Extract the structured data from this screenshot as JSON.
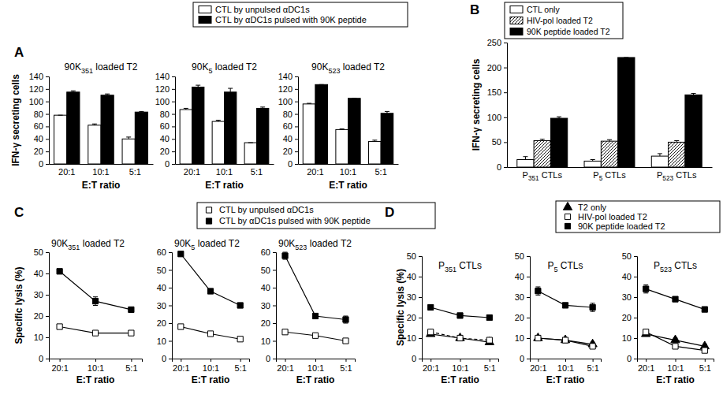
{
  "chart_data": [
    {
      "type": "bar",
      "annotations": [
        "A"
      ],
      "title": "90K351 loaded T2",
      "xlabel": "E:T ratio",
      "ylabel": "IFN-γ secreting cells",
      "categories": [
        "20:1",
        "10:1",
        "5:1"
      ],
      "series": [
        {
          "name": "CTL by unpulsed αDC1s",
          "color": "#ffffff",
          "values": [
            78,
            62,
            40
          ],
          "errors": [
            0,
            2,
            3
          ]
        },
        {
          "name": "CTL by αDC1s pulsed with 90K peptide",
          "color": "#000000",
          "values": [
            115,
            110,
            83
          ],
          "errors": [
            2,
            2,
            1
          ]
        }
      ],
      "ylim": [
        0,
        140
      ],
      "yticks": [
        0,
        20,
        40,
        60,
        80,
        100,
        120,
        140
      ],
      "legend": "top"
    },
    {
      "type": "bar",
      "title": "90K5 loaded T2",
      "xlabel": "E:T ratio",
      "categories": [
        "20:1",
        "10:1",
        "5:1"
      ],
      "series": [
        {
          "color": "#ffffff",
          "values": [
            87,
            68,
            34
          ],
          "errors": [
            2,
            2,
            0
          ]
        },
        {
          "color": "#000000",
          "values": [
            123,
            115,
            89
          ],
          "errors": [
            3,
            6,
            2
          ]
        }
      ],
      "ylim": [
        0,
        140
      ],
      "yticks": [
        0,
        20,
        40,
        60,
        80,
        100,
        120,
        140
      ]
    },
    {
      "type": "bar",
      "title": "90K523 loaded T2",
      "xlabel": "E:T ratio",
      "categories": [
        "20:1",
        "10:1",
        "5:1"
      ],
      "series": [
        {
          "color": "#ffffff",
          "values": [
            96,
            55,
            36
          ],
          "errors": [
            1,
            1,
            2
          ]
        },
        {
          "color": "#000000",
          "values": [
            127,
            105,
            81
          ],
          "errors": [
            0,
            0,
            3
          ]
        }
      ],
      "ylim": [
        0,
        140
      ],
      "yticks": [
        0,
        20,
        40,
        60,
        80,
        100,
        120,
        140
      ]
    },
    {
      "type": "bar",
      "annotations": [
        "B"
      ],
      "ylabel": "IFN-γ secreting cells",
      "categories": [
        "P351 CTLs",
        "P5 CTLs",
        "P523 CTLs"
      ],
      "series": [
        {
          "name": "CTL only",
          "color": "#ffffff",
          "values": [
            15,
            12,
            22
          ],
          "errors": [
            6,
            3,
            5
          ]
        },
        {
          "name": "HIV-pol loaded T2",
          "color": "#ffffff",
          "marker": "hatched",
          "values": [
            53,
            52,
            50
          ],
          "errors": [
            3,
            3,
            3
          ]
        },
        {
          "name": "90K peptide loaded T2",
          "color": "#000000",
          "values": [
            98,
            220,
            145
          ],
          "errors": [
            3,
            0,
            3
          ]
        }
      ],
      "ylim": [
        0,
        250
      ],
      "yticks": [
        0,
        50,
        100,
        150,
        200,
        250
      ],
      "legend": "top"
    },
    {
      "type": "line",
      "annotations": [
        "C"
      ],
      "title": "90K351 loaded T2",
      "xlabel": "E:T ratio",
      "ylabel": "Specific lysis (%)",
      "categories": [
        "20:1",
        "10:1",
        "5:1"
      ],
      "series": [
        {
          "name": "CTL by unpulsed αDC1s",
          "color": "#ffffff",
          "marker": "square",
          "line_style": "solid",
          "values": [
            15,
            12,
            12
          ],
          "errors": [
            1,
            1,
            1
          ]
        },
        {
          "name": "CTL by αDC1s pulsed with 90K peptide",
          "color": "#000000",
          "marker": "square",
          "line_style": "solid",
          "values": [
            41,
            27,
            23
          ],
          "errors": [
            1,
            2,
            1
          ]
        }
      ],
      "ylim": [
        0,
        50
      ],
      "yticks": [
        0,
        10,
        20,
        30,
        40,
        50
      ],
      "legend": "top"
    },
    {
      "type": "line",
      "title": "90K5 loaded T2",
      "xlabel": "E:T ratio",
      "categories": [
        "20:1",
        "10:1",
        "5:1"
      ],
      "series": [
        {
          "color": "#ffffff",
          "marker": "square",
          "line_style": "solid",
          "values": [
            18,
            14,
            11
          ],
          "errors": [
            1,
            1,
            1
          ]
        },
        {
          "color": "#000000",
          "marker": "square",
          "line_style": "solid",
          "values": [
            59,
            38,
            30
          ],
          "errors": [
            1,
            1,
            1
          ]
        }
      ],
      "ylim": [
        0,
        60
      ],
      "yticks": [
        0,
        10,
        20,
        30,
        40,
        50,
        60
      ]
    },
    {
      "type": "line",
      "title": "90K523 loaded T2",
      "xlabel": "E:T ratio",
      "categories": [
        "20:1",
        "10:1",
        "5:1"
      ],
      "series": [
        {
          "color": "#ffffff",
          "marker": "square",
          "line_style": "solid",
          "values": [
            15,
            13,
            10
          ],
          "errors": [
            1,
            1,
            1
          ]
        },
        {
          "color": "#000000",
          "marker": "square",
          "line_style": "solid",
          "values": [
            58,
            24,
            22
          ],
          "errors": [
            2,
            1,
            2
          ]
        }
      ],
      "ylim": [
        0,
        60
      ],
      "yticks": [
        0,
        10,
        20,
        30,
        40,
        50,
        60
      ]
    },
    {
      "type": "line",
      "annotations": [
        "D"
      ],
      "title": "P351 CTLs",
      "xlabel": "E:T ratio",
      "ylabel": "Specific lysis (%)",
      "categories": [
        "20:1",
        "10:1",
        "5:1"
      ],
      "series": [
        {
          "name": "T2 only",
          "color": "#000000",
          "marker": "triangle",
          "line_style": "solid",
          "values": [
            12,
            10,
            8
          ],
          "errors": [
            1,
            1,
            1
          ]
        },
        {
          "name": "HIV-pol loaded T2",
          "color": "#ffffff",
          "marker": "square",
          "line_style": "dashed",
          "values": [
            13,
            10,
            9
          ],
          "errors": [
            1,
            1,
            1
          ]
        },
        {
          "name": "90K peptide loaded T2",
          "color": "#000000",
          "marker": "square",
          "line_style": "solid",
          "values": [
            25,
            21,
            20
          ],
          "errors": [
            1,
            1,
            1
          ]
        }
      ],
      "ylim": [
        0,
        50
      ],
      "yticks": [
        0,
        10,
        20,
        30,
        40,
        50
      ],
      "legend": "top"
    },
    {
      "type": "line",
      "title": "P5 CTLs",
      "xlabel": "E:T ratio",
      "categories": [
        "20:1",
        "10:1",
        "5:1"
      ],
      "series": [
        {
          "color": "#000000",
          "marker": "triangle",
          "line_style": "solid",
          "values": [
            10,
            9,
            7
          ],
          "errors": [
            1,
            1,
            1
          ]
        },
        {
          "color": "#ffffff",
          "marker": "square",
          "line_style": "solid",
          "values": [
            10,
            9,
            6
          ],
          "errors": [
            1,
            1,
            1
          ]
        },
        {
          "color": "#000000",
          "marker": "square",
          "line_style": "solid",
          "values": [
            33,
            26,
            25
          ],
          "errors": [
            2,
            1,
            2
          ]
        }
      ],
      "ylim": [
        0,
        50
      ],
      "yticks": [
        0,
        10,
        20,
        30,
        40,
        50
      ]
    },
    {
      "type": "line",
      "title": "P523 CTLs",
      "xlabel": "E:T ratio",
      "categories": [
        "20:1",
        "10:1",
        "5:1"
      ],
      "series": [
        {
          "color": "#000000",
          "marker": "triangle",
          "line_style": "solid",
          "values": [
            12,
            9,
            6
          ],
          "errors": [
            1,
            1,
            1
          ]
        },
        {
          "color": "#ffffff",
          "marker": "square",
          "line_style": "solid",
          "values": [
            13,
            6,
            4
          ],
          "errors": [
            1,
            1,
            1
          ]
        },
        {
          "color": "#000000",
          "marker": "square",
          "line_style": "solid",
          "values": [
            34,
            29,
            24
          ],
          "errors": [
            2,
            1,
            1
          ]
        }
      ],
      "ylim": [
        0,
        50
      ],
      "yticks": [
        0,
        10,
        20,
        30,
        40,
        50
      ]
    }
  ]
}
